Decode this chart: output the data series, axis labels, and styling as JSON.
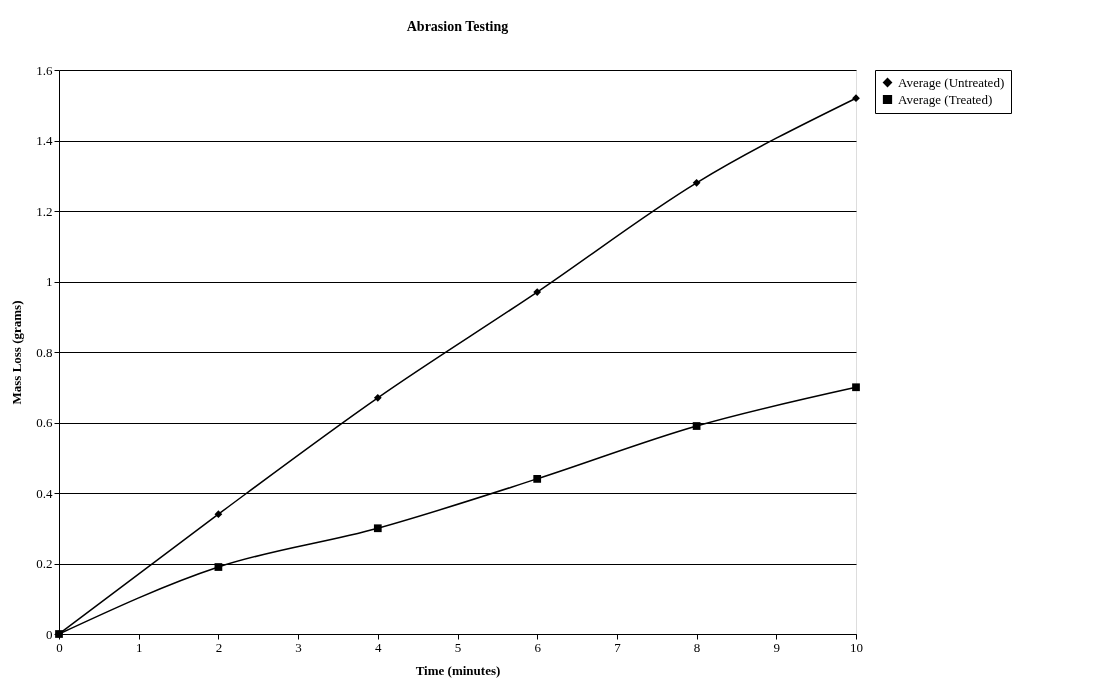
{
  "chart_data": {
    "type": "line",
    "title": "Abrasion Testing",
    "xlabel": "Time (minutes)",
    "ylabel": "Mass Loss (grams)",
    "x": [
      0,
      2,
      4,
      6,
      8,
      10
    ],
    "series": [
      {
        "name": "Average (Untreated)",
        "color": "#000000",
        "marker": "diamond",
        "values": [
          0,
          0.34,
          0.67,
          0.97,
          1.28,
          1.52
        ]
      },
      {
        "name": "Average (Treated)",
        "color": "#000000",
        "marker": "square",
        "values": [
          0,
          0.19,
          0.3,
          0.44,
          0.59,
          0.7
        ]
      }
    ],
    "xlim": [
      0,
      10
    ],
    "xticks": [
      0,
      1,
      2,
      3,
      4,
      5,
      6,
      7,
      8,
      9,
      10
    ],
    "ylim": [
      0,
      1.6
    ],
    "yticks": [
      0,
      0.2,
      0.4,
      0.6,
      0.8,
      1,
      1.2,
      1.4,
      1.6
    ],
    "grid": "y",
    "legend": "right",
    "line_style": "solid"
  }
}
